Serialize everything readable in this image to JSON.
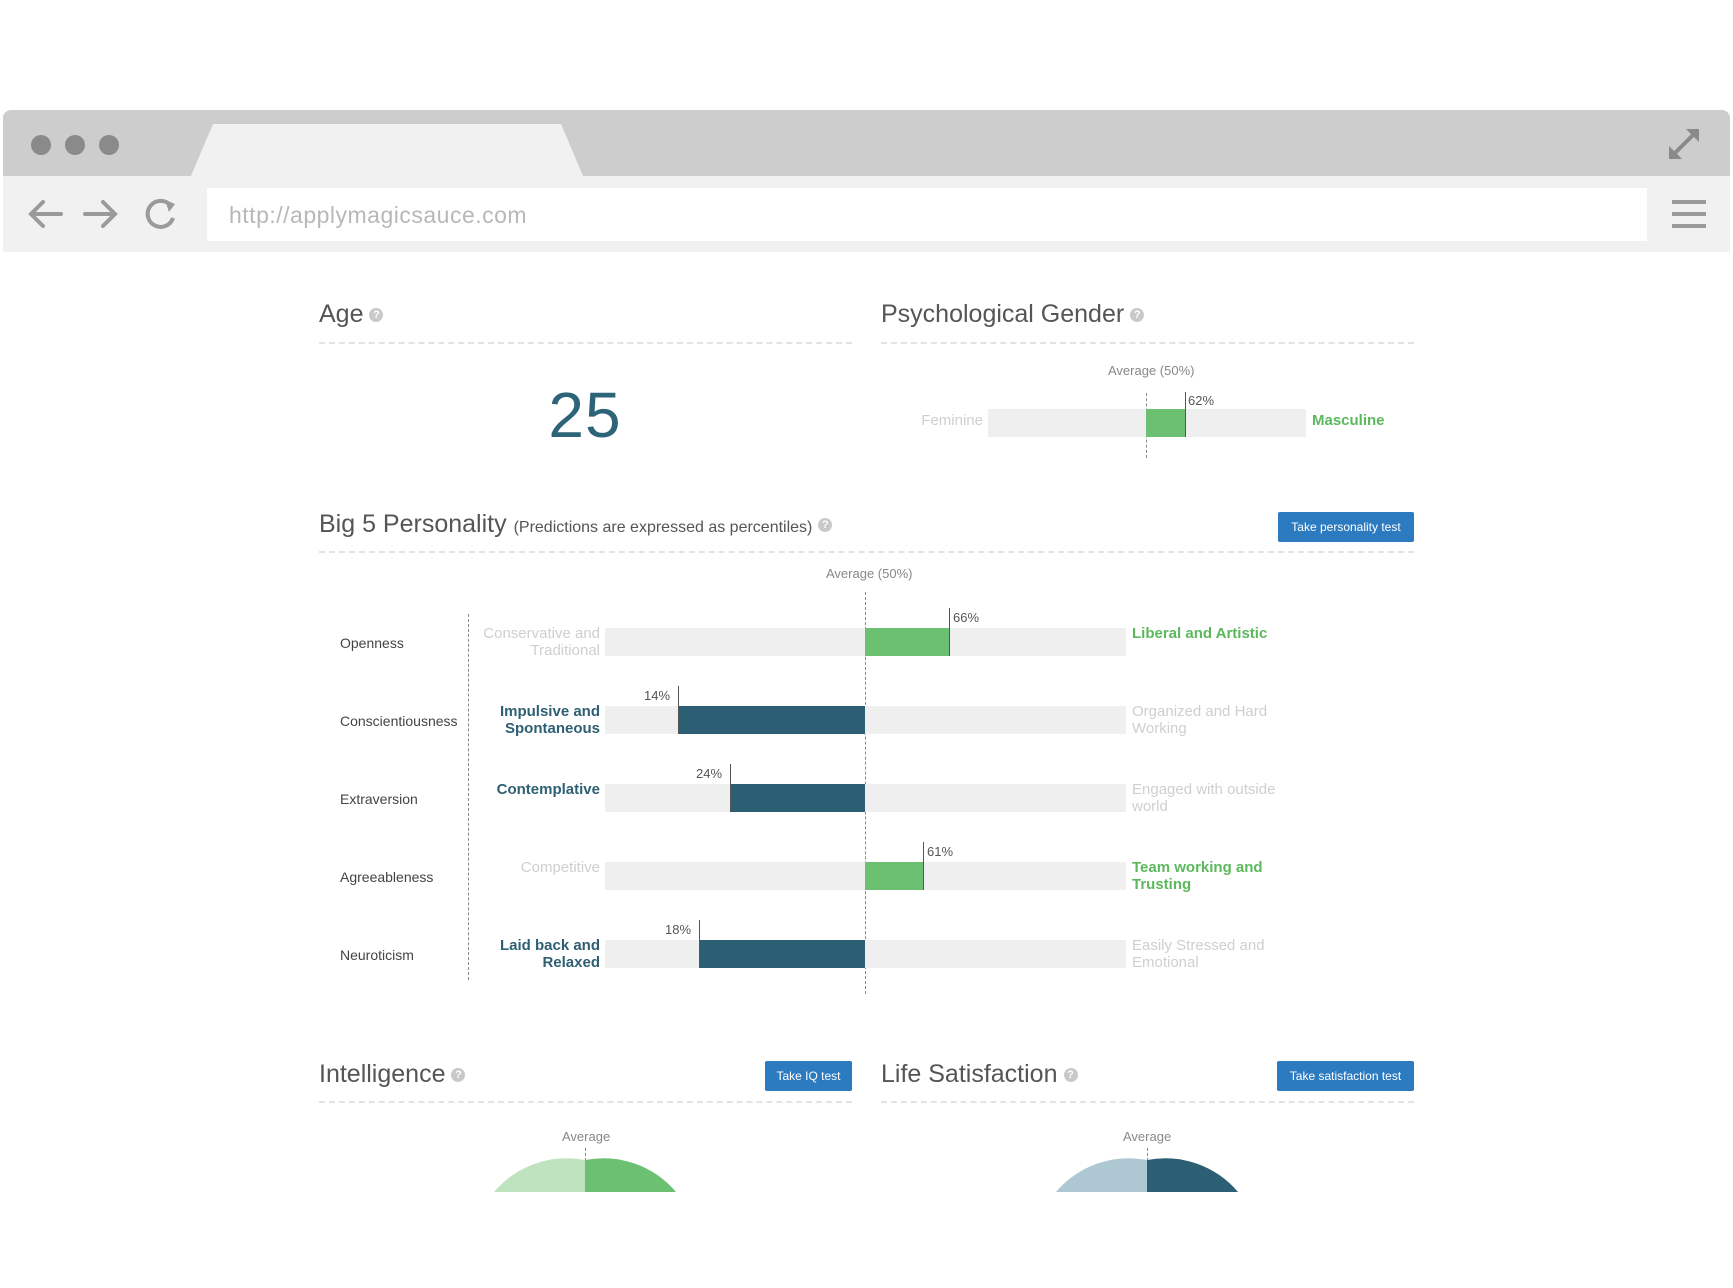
{
  "browser": {
    "url": "http://applymagicsauce.com"
  },
  "age": {
    "title": "Age",
    "value": "25"
  },
  "gender": {
    "title": "Psychological Gender",
    "average_label": "Average (50%)",
    "left_label": "Feminine",
    "right_label": "Masculine",
    "percent": 62,
    "percent_label": "62%"
  },
  "personality": {
    "title": "Big 5 Personality",
    "subtitle": "(Predictions are expressed as percentiles)",
    "button": "Take personality test",
    "average_label": "Average (50%)",
    "traits": [
      {
        "name": "Openness",
        "low": "Conservative and Traditional",
        "high": "Liberal and Artistic",
        "percent": 66,
        "percent_label": "66%"
      },
      {
        "name": "Conscientiousness",
        "low": "Impulsive and Spontaneous",
        "high": "Organized and Hard Working",
        "percent": 14,
        "percent_label": "14%"
      },
      {
        "name": "Extraversion",
        "low": "Contemplative",
        "high": "Engaged with outside world",
        "percent": 24,
        "percent_label": "24%"
      },
      {
        "name": "Agreeableness",
        "low": "Competitive",
        "high": "Team working and Trusting",
        "percent": 61,
        "percent_label": "61%"
      },
      {
        "name": "Neuroticism",
        "low": "Laid back and Relaxed",
        "high": "Easily Stressed and Emotional",
        "percent": 18,
        "percent_label": "18%"
      }
    ]
  },
  "intelligence": {
    "title": "Intelligence",
    "button": "Take IQ test",
    "average_label": "Average"
  },
  "satisfaction": {
    "title": "Life Satisfaction",
    "button": "Take satisfaction test",
    "average_label": "Average"
  },
  "colors": {
    "green": "#6cc071",
    "green_light": "#bfe2bf",
    "blue": "#2c5f73",
    "blue_light": "#aec8d3",
    "button": "#2c7ac0"
  }
}
